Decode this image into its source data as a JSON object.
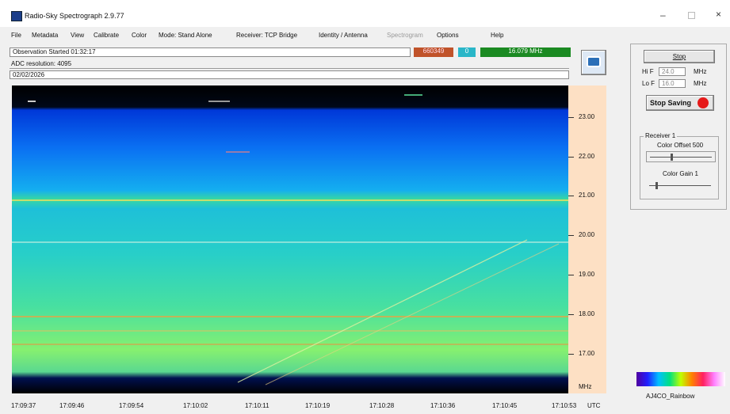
{
  "window": {
    "title": "Radio-Sky Spectrograph 2.9.77"
  },
  "menu": [
    "File",
    "Metadata",
    "View",
    "Calibrate",
    "Color",
    "Mode: Stand Alone",
    "Receiver: TCP Bridge",
    "Identity / Antenna",
    "Spectrogram",
    "Options",
    "Help"
  ],
  "status": {
    "observation": "Observation Started  01:32:17",
    "counter": "660349",
    "indicator": "0",
    "frequency": "16.079 MHz",
    "adc": "ADC resolution: 4095",
    "date": "02/02/2026"
  },
  "spectrogram": {
    "freq_labels": [
      "23.00",
      "22.00",
      "21.00",
      "20.00",
      "19.00",
      "18.00",
      "17.00"
    ],
    "freq_unit": "MHz",
    "time_labels": [
      "17:09:37",
      "17:09:46",
      "17:09:54",
      "17:10:02",
      "17:10:11",
      "17:10:19",
      "17:10:28",
      "17:10:36",
      "17:10:45",
      "17:10:53"
    ],
    "time_unit": "UTC"
  },
  "controls": {
    "stop": "Stop",
    "hi_label": "Hi F",
    "hi_value": "24.0",
    "hi_unit": "MHz",
    "lo_label": "Lo F",
    "lo_value": "16.0",
    "lo_unit": "MHz",
    "stop_saving": "Stop Saving",
    "receiver_group": "Receiver 1",
    "color_offset": "Color Offset 500",
    "color_gain": "Color Gain 1",
    "palette": "AJ4CO_Rainbow"
  }
}
